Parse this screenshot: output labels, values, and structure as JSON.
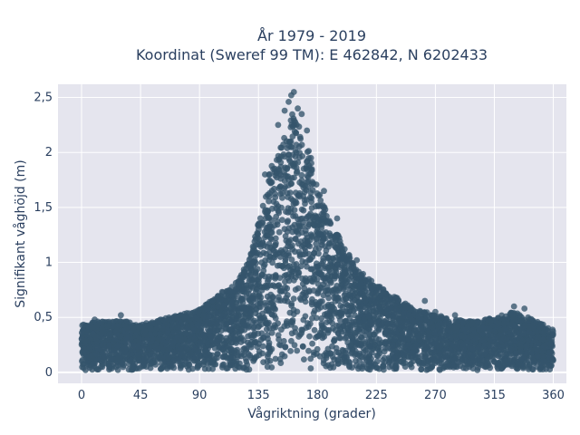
{
  "chart_data": {
    "type": "scatter",
    "title_line1": "År 1979 - 2019",
    "title_line2": "Koordinat (Sweref 99 TM): E 462842, N 6202433",
    "xlabel": "Vågriktning (grader)",
    "ylabel": "Signifikant våghöjd (m)",
    "xlim": [
      -18,
      370
    ],
    "ylim": [
      -0.1,
      2.62
    ],
    "x_ticks": [
      0,
      45,
      90,
      135,
      180,
      225,
      270,
      315,
      360
    ],
    "x_tick_labels": [
      "0",
      "45",
      "90",
      "135",
      "180",
      "225",
      "270",
      "315",
      "360"
    ],
    "y_ticks": [
      0,
      0.5,
      1,
      1.5,
      2,
      2.5
    ],
    "y_tick_labels": [
      "0",
      "0,5",
      "1",
      "1,5",
      "2",
      "2,5"
    ],
    "grid": true,
    "marker_color": "#34556b",
    "background_color": "#e5e5ee",
    "grid_color": "#ffffff",
    "text_color": "#2a3f5f",
    "envelope": {
      "x": [
        0,
        10,
        20,
        30,
        45,
        60,
        75,
        90,
        100,
        110,
        120,
        128,
        135,
        140,
        145,
        150,
        155,
        160,
        165,
        170,
        175,
        180,
        190,
        200,
        210,
        225,
        240,
        255,
        270,
        285,
        300,
        315,
        330,
        345,
        360
      ],
      "y_max": [
        0.45,
        0.48,
        0.48,
        0.5,
        0.45,
        0.5,
        0.55,
        0.6,
        0.7,
        0.8,
        0.9,
        1.1,
        1.5,
        1.75,
        2.05,
        2.15,
        2.35,
        2.55,
        2.45,
        2.3,
        2.1,
        1.8,
        1.45,
        1.25,
        1.0,
        0.85,
        0.72,
        0.6,
        0.55,
        0.5,
        0.48,
        0.52,
        0.58,
        0.5,
        0.4
      ]
    },
    "sample_points": [
      {
        "x": 162,
        "y": 2.55
      },
      {
        "x": 160,
        "y": 2.52
      },
      {
        "x": 158,
        "y": 2.46
      },
      {
        "x": 165,
        "y": 2.4
      },
      {
        "x": 155,
        "y": 2.38
      },
      {
        "x": 168,
        "y": 2.35
      },
      {
        "x": 150,
        "y": 2.25
      },
      {
        "x": 172,
        "y": 2.2
      },
      {
        "x": 175,
        "y": 1.95
      },
      {
        "x": 140,
        "y": 1.8
      },
      {
        "x": 185,
        "y": 1.65
      },
      {
        "x": 195,
        "y": 1.4
      },
      {
        "x": 210,
        "y": 1.02
      },
      {
        "x": 225,
        "y": 0.72
      },
      {
        "x": 240,
        "y": 0.68
      },
      {
        "x": 262,
        "y": 0.65
      },
      {
        "x": 270,
        "y": 0.55
      },
      {
        "x": 285,
        "y": 0.52
      },
      {
        "x": 330,
        "y": 0.6
      },
      {
        "x": 338,
        "y": 0.58
      },
      {
        "x": 10,
        "y": 0.48
      },
      {
        "x": 30,
        "y": 0.52
      },
      {
        "x": 3,
        "y": 0.02
      },
      {
        "x": 120,
        "y": 0.78
      },
      {
        "x": 100,
        "y": 0.65
      }
    ]
  }
}
